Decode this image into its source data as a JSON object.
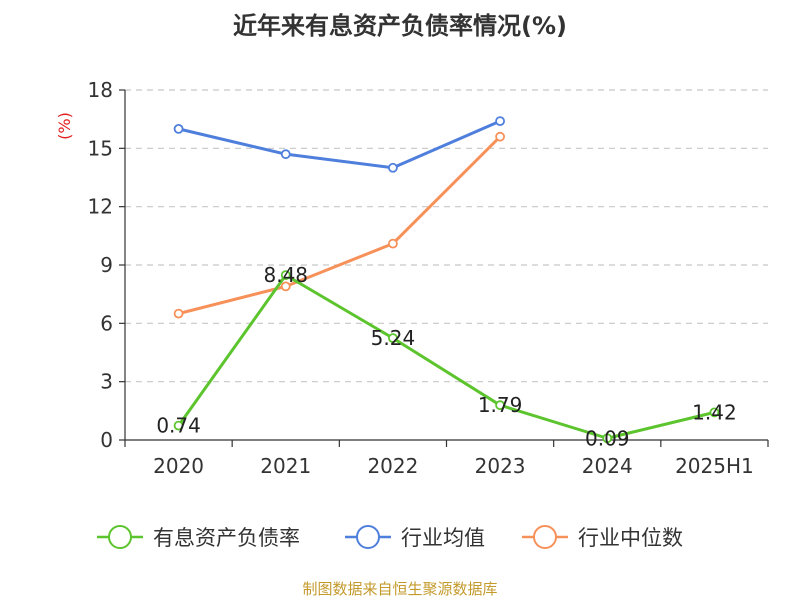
{
  "title": "近年来有息资产负债率情况(%)",
  "source": "制图数据来自恒生聚源数据库",
  "chart_data": {
    "type": "line",
    "categories": [
      "2020",
      "2021",
      "2022",
      "2023",
      "2024",
      "2025H1"
    ],
    "ylabel": "(%)",
    "ylim": [
      0,
      18
    ],
    "yticks": [
      0,
      3,
      6,
      9,
      12,
      15,
      18
    ],
    "grid": true,
    "legend_position": "bottom",
    "series": [
      {
        "name": "有息资产负债率",
        "color": "#5cc42d",
        "values": [
          0.74,
          8.48,
          5.24,
          1.79,
          0.09,
          1.42
        ],
        "labels": [
          "0.74",
          "8.48",
          "5.24",
          "1.79",
          "0.09",
          "1.42"
        ],
        "show_labels": true
      },
      {
        "name": "行业均值",
        "color": "#4f7fdc",
        "values": [
          16.0,
          14.7,
          14.0,
          16.4,
          null,
          null
        ],
        "show_labels": false
      },
      {
        "name": "行业中位数",
        "color": "#f7915a",
        "values": [
          6.5,
          7.9,
          10.1,
          15.6,
          null,
          null
        ],
        "show_labels": false
      }
    ]
  }
}
